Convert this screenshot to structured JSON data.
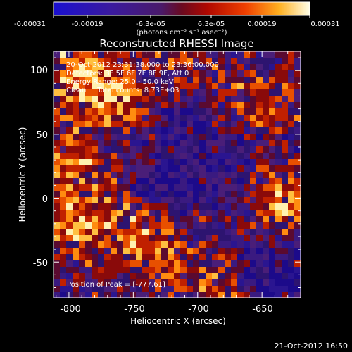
{
  "colorbar": {
    "tick_labels": [
      "-0.00031",
      "-0.00019",
      "-6.3e-05",
      "6.3e-05",
      "0.00019",
      "0.00031"
    ],
    "range": [
      -0.00031,
      0.00031
    ],
    "units_label": "(photons cm⁻² s⁻¹ asec⁻²)"
  },
  "plot": {
    "title": "Reconstructed RHESSI Image",
    "xlabel": "Heliocentric X (arcsec)",
    "ylabel": "Heliocentric Y (arcsec)",
    "x_ticks": [
      "-800",
      "-750",
      "-700",
      "-650"
    ],
    "y_ticks": [
      "100",
      "50",
      "0",
      "-50"
    ],
    "xlim": [
      -812,
      -620
    ],
    "ylim": [
      -78,
      115
    ],
    "annotations": [
      "20-Oct-2012 23:31:38.000 to 23:36:00.000",
      "Detectors: 3F 5F 6F 7F 8F 9F, Att 0",
      "Energy Range: 25.0 - 50.0 keV",
      "Clean     Total counts: 8.73E+03"
    ],
    "peak_label": "Position of Peak = [-777,61]"
  },
  "timestamp": "21-Oct-2012 16:50",
  "colors": {
    "background": "#000000",
    "text": "#ffffff"
  }
}
